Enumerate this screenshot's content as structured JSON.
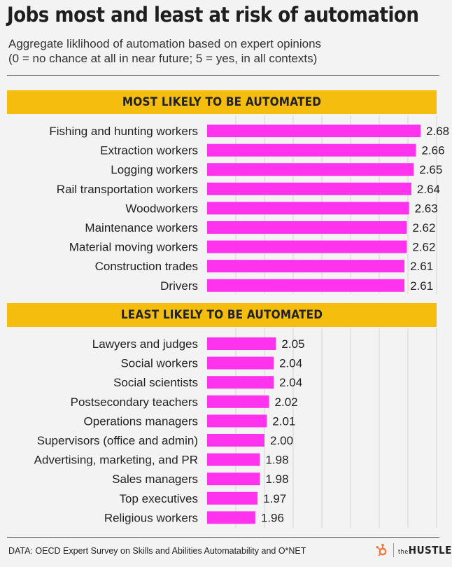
{
  "title": "Jobs most and least at risk of automation",
  "subtitle_line1": "Aggregate liklihood of automation based on expert opinions",
  "subtitle_line2": "(0 =  no chance at all in near future; 5 = yes, in all contexts)",
  "footer": "DATA: OECD Expert Survey on Skills and Abilities Automatability and O*NET",
  "logo": {
    "the": "the",
    "name": "HUSTLE",
    "icon": "hubspot-sprocket-icon"
  },
  "colors": {
    "bar": "#ff33ee",
    "banner": "#f5bd0d",
    "grid": "#d6d6d6",
    "background": "#f3f3f3"
  },
  "chart_data": [
    {
      "type": "bar",
      "orientation": "horizontal",
      "title": "MOST LIKELY TO BE AUTOMATED",
      "categories": [
        "Fishing and hunting workers",
        "Extraction workers",
        "Logging workers",
        "Rail transportation workers",
        "Woodworkers",
        "Maintenance workers",
        "Material moving workers",
        "Construction trades",
        "Drivers"
      ],
      "values": [
        2.68,
        2.66,
        2.65,
        2.64,
        2.63,
        2.62,
        2.62,
        2.61,
        2.61
      ],
      "value_labels": [
        "2.68",
        "2.66",
        "2.65",
        "2.64",
        "2.63",
        "2.62",
        "2.62",
        "2.61",
        "2.61"
      ],
      "xlim": [
        1.75,
        2.75
      ],
      "grid": true
    },
    {
      "type": "bar",
      "orientation": "horizontal",
      "title": "LEAST LIKELY TO BE AUTOMATED",
      "categories": [
        "Lawyers and judges",
        "Social workers",
        "Social scientists",
        "Postsecondary teachers",
        "Operations managers",
        "Supervisors (office and admin)",
        "Advertising, marketing, and PR",
        "Sales managers",
        "Top executives",
        "Religious workers"
      ],
      "values": [
        2.05,
        2.04,
        2.04,
        2.02,
        2.01,
        2.0,
        1.98,
        1.98,
        1.97,
        1.96
      ],
      "value_labels": [
        "2.05",
        "2.04",
        "2.04",
        "2.02",
        "2.01",
        "2.00",
        "1.98",
        "1.98",
        "1.97",
        "1.96"
      ],
      "xlim": [
        1.75,
        2.75
      ],
      "grid": true
    }
  ]
}
